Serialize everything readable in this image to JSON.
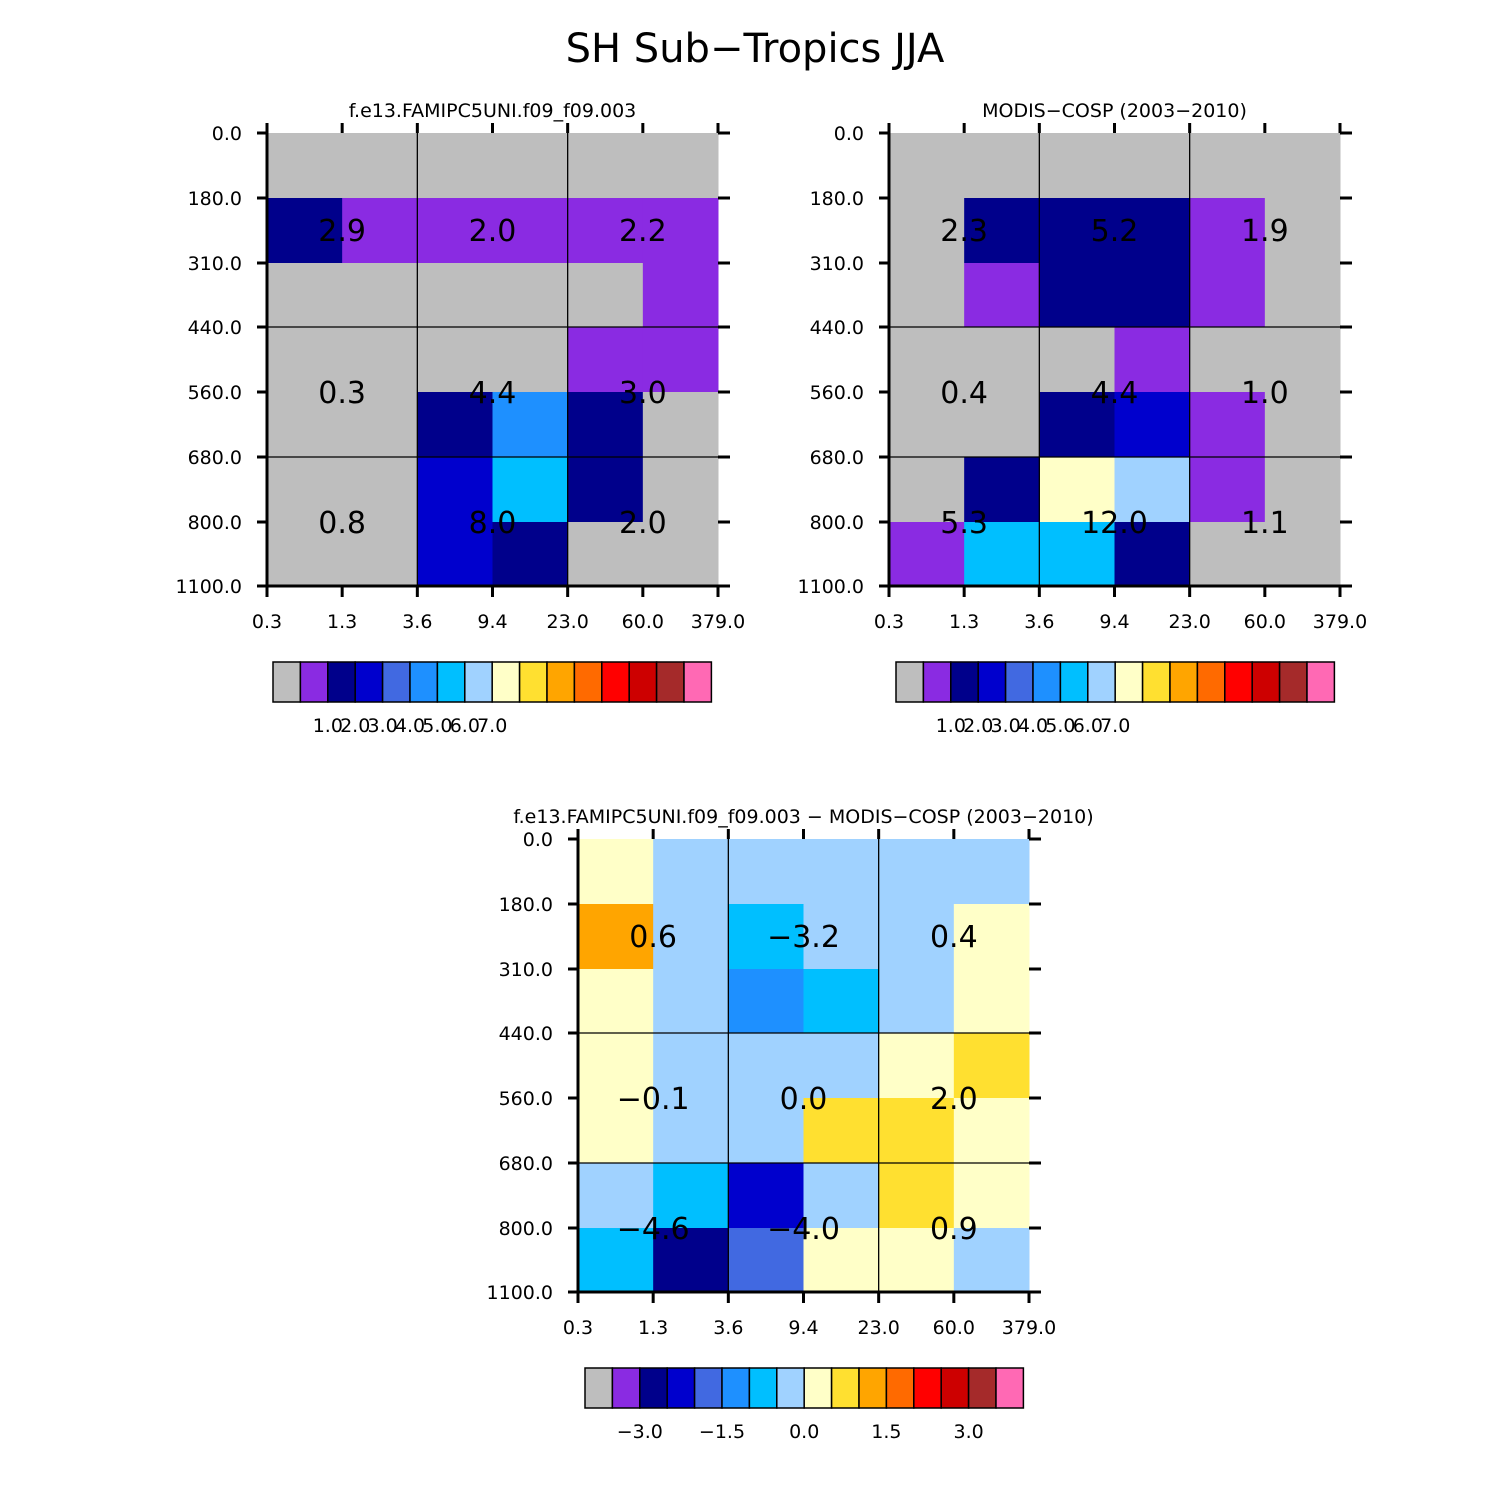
{
  "figure": {
    "title": "SH Sub−Tropics JJA"
  },
  "chart_data": [
    {
      "type": "heatmap",
      "title": "f.e13.FAMIPC5UNI.f09_f09.003",
      "x_ticks": [
        "0.3",
        "1.3",
        "3.6",
        "9.4",
        "23.0",
        "60.0",
        "379.0"
      ],
      "y_ticks": [
        "0.0",
        "180.0",
        "310.0",
        "440.0",
        "560.0",
        "680.0",
        "800.0",
        "1100.0"
      ],
      "legend_colors": [
        "#bebebe",
        "#8a2be2",
        "#00008b",
        "#0000cd",
        "#4169e1",
        "#1e90ff",
        "#00bfff",
        "#a0d2ff",
        "#ffffc8",
        "#ffe030",
        "#ffa500",
        "#ff6a00",
        "#ff0000",
        "#cd0000",
        "#a52a2a",
        "#ff69b4"
      ],
      "legend_labels": [
        "1.0",
        "2.0",
        "3.0",
        "4.0",
        "5.0",
        "6.0",
        "7.0"
      ],
      "legend_label_start": 1,
      "cells": [
        [
          "#bebebe",
          "#bebebe",
          "#bebebe",
          "#bebebe",
          "#bebebe",
          "#bebebe"
        ],
        [
          "#00008b",
          "#8a2be2",
          "#8a2be2",
          "#8a2be2",
          "#8a2be2",
          "#8a2be2"
        ],
        [
          "#bebebe",
          "#bebebe",
          "#bebebe",
          "#bebebe",
          "#bebebe",
          "#8a2be2"
        ],
        [
          "#bebebe",
          "#bebebe",
          "#bebebe",
          "#bebebe",
          "#8a2be2",
          "#8a2be2"
        ],
        [
          "#bebebe",
          "#bebebe",
          "#00008b",
          "#1e90ff",
          "#00008b",
          "#bebebe"
        ],
        [
          "#bebebe",
          "#bebebe",
          "#0000cd",
          "#00bfff",
          "#00008b",
          "#bebebe"
        ],
        [
          "#bebebe",
          "#bebebe",
          "#0000cd",
          "#00008b",
          "#bebebe",
          "#bebebe"
        ]
      ],
      "values": [
        [
          "2.9",
          "2.0",
          "2.2"
        ],
        [
          "0.3",
          "4.4",
          "3.0"
        ],
        [
          "0.8",
          "8.0",
          "2.0"
        ]
      ]
    },
    {
      "type": "heatmap",
      "title": "MODIS−COSP (2003−2010)",
      "x_ticks": [
        "0.3",
        "1.3",
        "3.6",
        "9.4",
        "23.0",
        "60.0",
        "379.0"
      ],
      "y_ticks": [
        "0.0",
        "180.0",
        "310.0",
        "440.0",
        "560.0",
        "680.0",
        "800.0",
        "1100.0"
      ],
      "legend_colors": [
        "#bebebe",
        "#8a2be2",
        "#00008b",
        "#0000cd",
        "#4169e1",
        "#1e90ff",
        "#00bfff",
        "#a0d2ff",
        "#ffffc8",
        "#ffe030",
        "#ffa500",
        "#ff6a00",
        "#ff0000",
        "#cd0000",
        "#a52a2a",
        "#ff69b4"
      ],
      "legend_labels": [
        "1.0",
        "2.0",
        "3.0",
        "4.0",
        "5.0",
        "6.0",
        "7.0"
      ],
      "legend_label_start": 1,
      "cells": [
        [
          "#bebebe",
          "#bebebe",
          "#bebebe",
          "#bebebe",
          "#bebebe",
          "#bebebe"
        ],
        [
          "#bebebe",
          "#00008b",
          "#00008b",
          "#00008b",
          "#8a2be2",
          "#bebebe"
        ],
        [
          "#bebebe",
          "#8a2be2",
          "#00008b",
          "#00008b",
          "#8a2be2",
          "#bebebe"
        ],
        [
          "#bebebe",
          "#bebebe",
          "#bebebe",
          "#8a2be2",
          "#bebebe",
          "#bebebe"
        ],
        [
          "#bebebe",
          "#bebebe",
          "#00008b",
          "#0000cd",
          "#8a2be2",
          "#bebebe"
        ],
        [
          "#bebebe",
          "#00008b",
          "#ffffc8",
          "#a0d2ff",
          "#8a2be2",
          "#bebebe"
        ],
        [
          "#8a2be2",
          "#00bfff",
          "#00bfff",
          "#00008b",
          "#bebebe",
          "#bebebe"
        ]
      ],
      "values": [
        [
          "2.3",
          "5.2",
          "1.9"
        ],
        [
          "0.4",
          "4.4",
          "1.0"
        ],
        [
          "5.3",
          "12.0",
          "1.1"
        ]
      ]
    },
    {
      "type": "heatmap",
      "title": "f.e13.FAMIPC5UNI.f09_f09.003 − MODIS−COSP (2003−2010)",
      "x_ticks": [
        "0.3",
        "1.3",
        "3.6",
        "9.4",
        "23.0",
        "60.0",
        "379.0"
      ],
      "y_ticks": [
        "0.0",
        "180.0",
        "310.0",
        "440.0",
        "560.0",
        "680.0",
        "800.0",
        "1100.0"
      ],
      "legend_colors": [
        "#bebebe",
        "#8a2be2",
        "#00008b",
        "#0000cd",
        "#4169e1",
        "#1e90ff",
        "#00bfff",
        "#a0d2ff",
        "#ffffc8",
        "#ffe030",
        "#ffa500",
        "#ff6a00",
        "#ff0000",
        "#cd0000",
        "#a52a2a",
        "#ff69b4"
      ],
      "legend_labels": [
        "−3.0",
        "−1.5",
        "0.0",
        "1.5",
        "3.0"
      ],
      "legend_label_start": 1,
      "legend_label_step": 3,
      "cells": [
        [
          "#ffffc8",
          "#a0d2ff",
          "#a0d2ff",
          "#a0d2ff",
          "#a0d2ff",
          "#a0d2ff"
        ],
        [
          "#ffa500",
          "#a0d2ff",
          "#00bfff",
          "#a0d2ff",
          "#a0d2ff",
          "#ffffc8"
        ],
        [
          "#ffffc8",
          "#a0d2ff",
          "#1e90ff",
          "#00bfff",
          "#a0d2ff",
          "#ffffc8"
        ],
        [
          "#ffffc8",
          "#a0d2ff",
          "#a0d2ff",
          "#a0d2ff",
          "#ffffc8",
          "#ffe030"
        ],
        [
          "#ffffc8",
          "#a0d2ff",
          "#a0d2ff",
          "#ffe030",
          "#ffe030",
          "#ffffc8"
        ],
        [
          "#a0d2ff",
          "#00bfff",
          "#0000cd",
          "#a0d2ff",
          "#ffe030",
          "#ffffc8"
        ],
        [
          "#00bfff",
          "#00008b",
          "#4169e1",
          "#ffffc8",
          "#ffffc8",
          "#a0d2ff"
        ]
      ],
      "values": [
        [
          "0.6",
          "−3.2",
          "0.4"
        ],
        [
          "−0.1",
          "0.0",
          "2.0"
        ],
        [
          "−4.6",
          "−4.0",
          "0.9"
        ]
      ]
    }
  ]
}
